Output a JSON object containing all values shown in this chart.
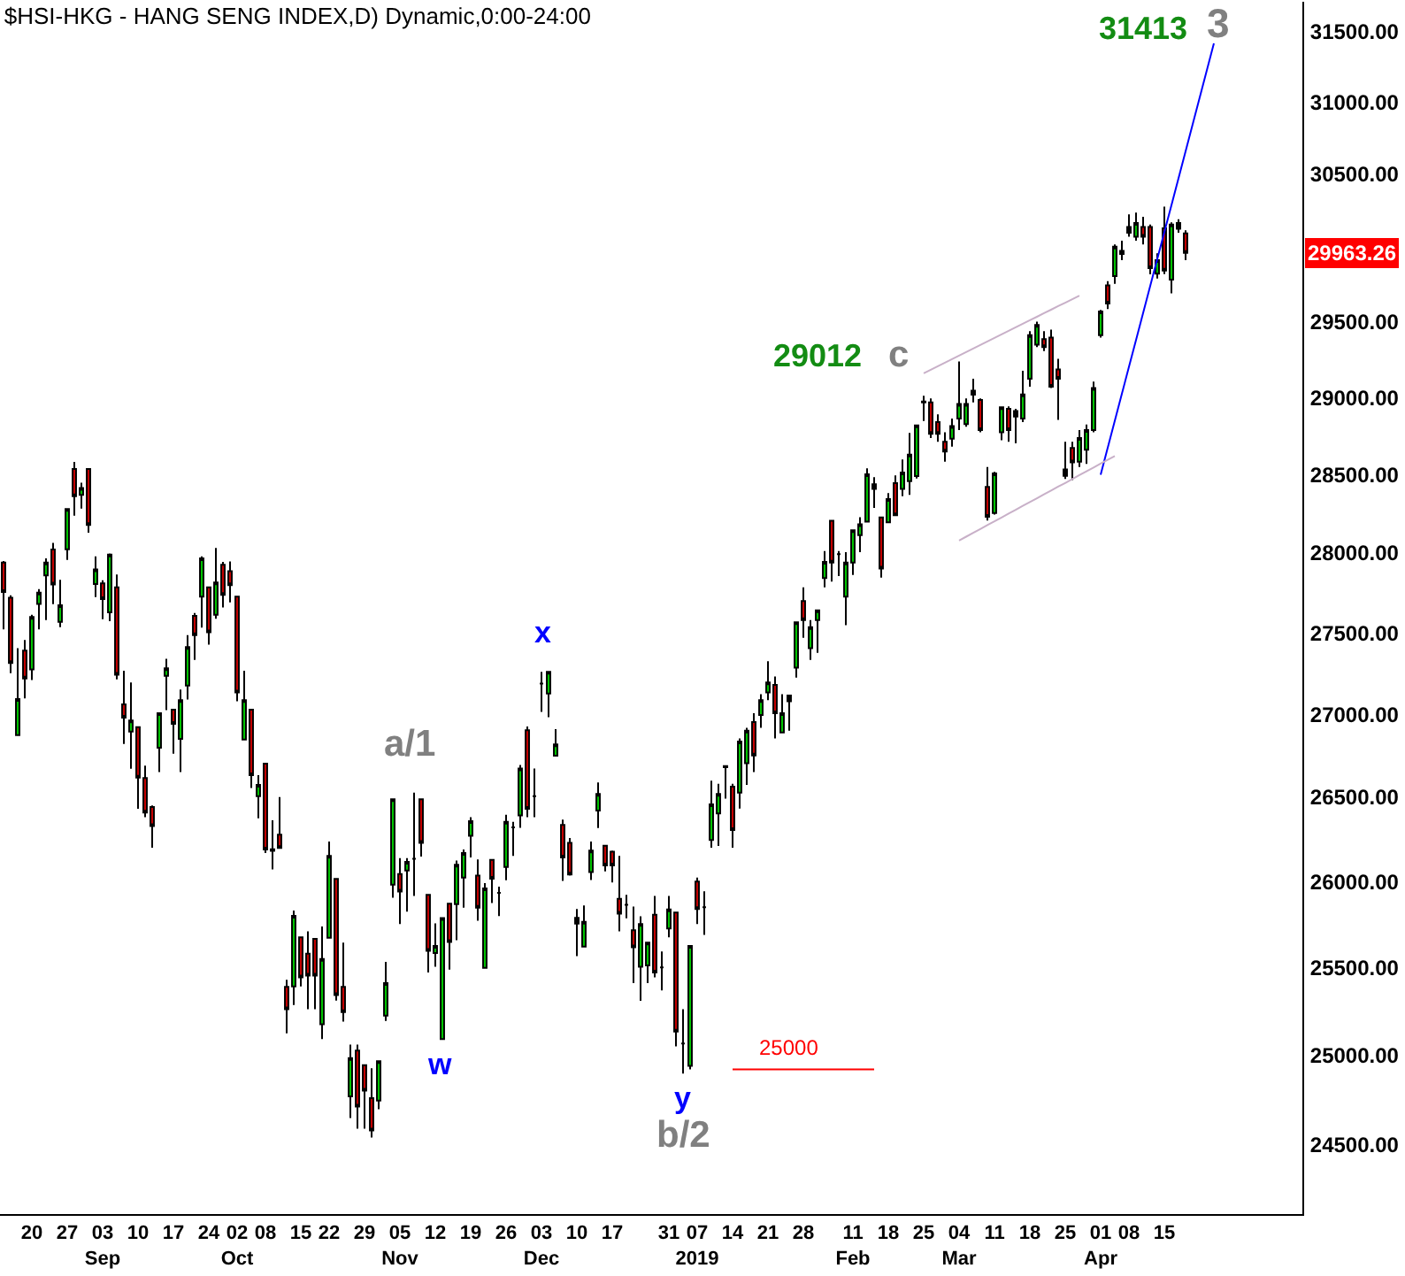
{
  "chart_data": {
    "type": "candlestick",
    "title": "$HSI-HKG - HANG SENG INDEX,D) Dynamic,0:00-24:00",
    "log": true,
    "categories": [
      null,
      null,
      null,
      null,
      "20",
      null,
      null,
      null,
      null,
      "27",
      null,
      null,
      null,
      null,
      "03\nSep",
      null,
      null,
      null,
      null,
      "10",
      null,
      null,
      null,
      null,
      "17",
      null,
      null,
      null,
      null,
      "24",
      null,
      null,
      null,
      "02\nOct",
      null,
      null,
      null,
      "08",
      null,
      null,
      null,
      null,
      "15",
      null,
      null,
      null,
      "22",
      null,
      null,
      null,
      null,
      "29",
      null,
      null,
      null,
      null,
      "05\nNov",
      null,
      null,
      null,
      null,
      "12",
      null,
      null,
      null,
      null,
      "19",
      null,
      null,
      null,
      null,
      "26",
      null,
      null,
      null,
      null,
      "03\nDec",
      null,
      null,
      null,
      null,
      "10",
      null,
      null,
      null,
      null,
      "17",
      null,
      null,
      null,
      null,
      null,
      null,
      null,
      "31",
      null,
      null,
      null,
      "07\n2019",
      null,
      null,
      null,
      null,
      "14",
      null,
      null,
      null,
      null,
      "21",
      null,
      null,
      null,
      null,
      "28",
      null,
      null,
      null,
      null,
      null,
      null,
      "11\nFeb",
      null,
      null,
      null,
      null,
      "18",
      null,
      null,
      null,
      null,
      "25",
      null,
      null,
      null,
      null,
      "04\nMar",
      null,
      null,
      null,
      null,
      "11",
      null,
      null,
      null,
      null,
      "18",
      null,
      null,
      null,
      null,
      "25",
      null,
      null,
      null,
      null,
      "01\nApr",
      null,
      null,
      null,
      "08",
      null,
      null,
      null,
      null,
      "15",
      null,
      null,
      null,
      null,
      null,
      null,
      null,
      null,
      null,
      null,
      null,
      null,
      null,
      null,
      null,
      null,
      null,
      null,
      null
    ],
    "ohlc": [
      [
        27940,
        27950,
        27522,
        27755
      ],
      [
        27720,
        27734,
        27252,
        27314
      ],
      [
        26873,
        27405,
        26873,
        27093
      ],
      [
        27391,
        27457,
        27097,
        27219
      ],
      [
        27274,
        27613,
        27209,
        27599
      ],
      [
        27680,
        27774,
        27522,
        27751
      ],
      [
        27859,
        27967,
        27580,
        27941
      ],
      [
        28023,
        28065,
        27679,
        27802
      ],
      [
        27569,
        27832,
        27536,
        27673
      ],
      [
        28024,
        28280,
        27957,
        28280
      ],
      [
        28537,
        28583,
        28238,
        28362
      ],
      [
        28370,
        28449,
        28283,
        28415
      ],
      [
        28537,
        28537,
        28130,
        28179
      ],
      [
        27806,
        27979,
        27723,
        27897
      ],
      [
        27809,
        27829,
        27585,
        27711
      ],
      [
        27628,
        27998,
        27573,
        27990
      ],
      [
        27785,
        27865,
        27214,
        27242
      ],
      [
        27060,
        27266,
        26820,
        26980
      ],
      [
        26895,
        27194,
        26670,
        26962
      ],
      [
        26921,
        26921,
        26430,
        26617
      ],
      [
        26614,
        26689,
        26380,
        26408
      ],
      [
        26440,
        26450,
        26199,
        26327
      ],
      [
        26797,
        27007,
        26650,
        27007
      ],
      [
        27235,
        27340,
        27025,
        27282
      ],
      [
        27028,
        27028,
        26761,
        26942
      ],
      [
        26851,
        27151,
        26650,
        27086
      ],
      [
        27176,
        27487,
        27090,
        27413
      ],
      [
        27606,
        27624,
        27333,
        27487
      ],
      [
        27727,
        27979,
        27533,
        27967
      ],
      [
        27785,
        27785,
        27427,
        27504
      ],
      [
        27613,
        28032,
        27588,
        27815
      ],
      [
        27926,
        27945,
        27658,
        27737
      ],
      [
        27886,
        27948,
        27690,
        27799
      ],
      [
        27727,
        27727,
        27079,
        27133
      ],
      [
        26846,
        27266,
        26846,
        27086
      ],
      [
        27028,
        27028,
        26555,
        26632
      ],
      [
        26505,
        26632,
        26374,
        26573
      ],
      [
        26700,
        26700,
        26167,
        26188
      ],
      [
        26190,
        26361,
        26071,
        26180
      ],
      [
        26276,
        26500,
        26198,
        26198
      ],
      [
        25389,
        25430,
        25124,
        25261
      ],
      [
        25392,
        25830,
        25285,
        25799
      ],
      [
        25675,
        25675,
        25392,
        25443
      ],
      [
        25580,
        25709,
        25261,
        25454
      ],
      [
        25665,
        25665,
        25261,
        25454
      ],
      [
        25175,
        25737,
        25091,
        25549
      ],
      [
        25672,
        26235,
        25672,
        26151
      ],
      [
        26015,
        26015,
        25311,
        25342
      ],
      [
        25389,
        25644,
        25191,
        25245
      ],
      [
        24769,
        25060,
        24648,
        24984
      ],
      [
        25027,
        25060,
        24589,
        24713
      ],
      [
        24944,
        24944,
        24589,
        24802
      ],
      [
        24759,
        24927,
        24540,
        24579
      ],
      [
        24746,
        24967,
        24697,
        24967
      ],
      [
        25225,
        25532,
        25195,
        25410
      ],
      [
        25981,
        26487,
        25905,
        26487
      ],
      [
        26044,
        26137,
        25751,
        25941
      ],
      [
        26064,
        26137,
        25823,
        26116
      ],
      [
        26133,
        26526,
        25915,
        26133
      ],
      [
        26487,
        26487,
        26147,
        26228
      ],
      [
        25922,
        25922,
        25471,
        25596
      ],
      [
        25583,
        25755,
        25505,
        25624
      ],
      [
        25091,
        25786,
        25091,
        25786
      ],
      [
        25870,
        25870,
        25488,
        25647
      ],
      [
        25867,
        26123,
        25658,
        26099
      ],
      [
        26023,
        26188,
        25847,
        26167
      ],
      [
        26269,
        26380,
        26142,
        26356
      ],
      [
        26034,
        26130,
        25771,
        25847
      ],
      [
        25498,
        25990,
        25498,
        25959
      ],
      [
        26127,
        26127,
        25874,
        26016
      ],
      [
        25934,
        25970,
        25798,
        25934
      ],
      [
        26085,
        26395,
        26007,
        26352
      ],
      [
        26320,
        26352,
        26151,
        26320
      ],
      [
        26391,
        26693,
        26317,
        26672
      ],
      [
        26903,
        26925,
        26380,
        26430
      ],
      [
        26505,
        26672,
        26380,
        26505
      ],
      [
        27187,
        27260,
        27014,
        27187
      ],
      [
        27126,
        27260,
        26982,
        27260
      ],
      [
        26749,
        26910,
        26749,
        26817
      ],
      [
        26334,
        26366,
        26003,
        26142
      ],
      [
        26228,
        26256,
        26034,
        26041
      ],
      [
        25788,
        25839,
        25566,
        25754
      ],
      [
        25621,
        25860,
        25621,
        25764
      ],
      [
        26055,
        26235,
        26009,
        26182
      ],
      [
        26419,
        26587,
        26315,
        26519
      ],
      [
        26211,
        26211,
        26059,
        26095
      ],
      [
        26175,
        26182,
        25994,
        26095
      ],
      [
        25898,
        26151,
        25709,
        25812
      ],
      [
        25863,
        25922,
        25785,
        25863
      ],
      [
        25716,
        25853,
        25410,
        25617
      ],
      [
        25505,
        25796,
        25309,
        25751
      ],
      [
        25512,
        25644,
        25410,
        25644
      ],
      [
        25805,
        25915,
        25444,
        25471
      ],
      [
        25501,
        25593,
        25369,
        25501
      ],
      [
        25726,
        25915,
        25675,
        25836
      ],
      [
        25819,
        25819,
        25050,
        25134
      ],
      [
        25067,
        25261,
        24897,
        25067
      ],
      [
        24940,
        25624,
        24920,
        25624
      ],
      [
        26000,
        26023,
        25751,
        25839
      ],
      [
        25850,
        25943,
        25689,
        25850
      ],
      [
        26245,
        26598,
        26199,
        26456
      ],
      [
        26403,
        26580,
        26210,
        26519
      ],
      [
        26680,
        26686,
        26491,
        26686
      ],
      [
        26562,
        26580,
        26199,
        26304
      ],
      [
        26527,
        26853,
        26432,
        26835
      ],
      [
        26704,
        26918,
        26573,
        26900
      ],
      [
        26953,
        27007,
        26650,
        26750
      ],
      [
        26996,
        27122,
        26918,
        27086
      ],
      [
        27133,
        27325,
        27086,
        27195
      ],
      [
        27180,
        27231,
        26853,
        27007
      ],
      [
        26889,
        27122,
        26889,
        27007
      ],
      [
        27079,
        27115,
        26900,
        27115
      ],
      [
        27285,
        27566,
        27224,
        27566
      ],
      [
        27699,
        27785,
        27470,
        27580
      ],
      [
        27405,
        27580,
        27333,
        27536
      ],
      [
        27580,
        27640,
        27377,
        27640
      ],
      [
        27843,
        28013,
        27785,
        27945
      ],
      [
        28205,
        28205,
        27821,
        27941
      ],
      [
        27994,
        28013,
        27855,
        27994
      ],
      [
        27727,
        28006,
        27548,
        27941
      ],
      [
        27941,
        28145,
        27862,
        28145
      ],
      [
        28114,
        28228,
        28006,
        28182
      ],
      [
        28200,
        28541,
        28200,
        28502
      ],
      [
        28408,
        28484,
        28287,
        28438
      ],
      [
        28227,
        28227,
        27846,
        27902
      ],
      [
        28196,
        28382,
        28196,
        28344
      ],
      [
        28446,
        28495,
        28240,
        28240
      ],
      [
        28408,
        28598,
        28362,
        28514
      ],
      [
        28458,
        28770,
        28370,
        28629
      ],
      [
        28491,
        28819,
        28476,
        28819
      ],
      [
        28975,
        29012,
        28847,
        28969
      ],
      [
        28969,
        28995,
        28737,
        28764
      ],
      [
        28841,
        28891,
        28712,
        28764
      ],
      [
        28712,
        28774,
        28584,
        28650
      ],
      [
        28733,
        28864,
        28681,
        28814
      ],
      [
        28864,
        29238,
        28789,
        28958
      ],
      [
        28827,
        28995,
        28810,
        28958
      ],
      [
        29020,
        29124,
        28969,
        29046
      ],
      [
        28985,
        28995,
        28774,
        28789
      ],
      [
        28422,
        28549,
        28206,
        28230
      ],
      [
        28255,
        28518,
        28245,
        28508
      ],
      [
        28774,
        28937,
        28722,
        28937
      ],
      [
        28927,
        28943,
        28712,
        28789
      ],
      [
        28876,
        28927,
        28702,
        28912
      ],
      [
        28864,
        29176,
        28841,
        29021
      ],
      [
        29124,
        29438,
        29072,
        29412
      ],
      [
        29348,
        29501,
        29333,
        29480
      ],
      [
        29385,
        29438,
        29306,
        29333
      ],
      [
        29395,
        29448,
        29063,
        29072
      ],
      [
        29185,
        29255,
        28855,
        29124
      ],
      [
        28534,
        28712,
        28473,
        28493
      ],
      [
        28672,
        28712,
        28465,
        28579
      ],
      [
        28584,
        28789,
        28549,
        28737
      ],
      [
        28661,
        28825,
        28569,
        28789
      ],
      [
        28789,
        29105,
        28774,
        29063
      ],
      [
        29412,
        29580,
        29396,
        29569
      ],
      [
        29744,
        29772,
        29585,
        29622
      ],
      [
        29807,
        30020,
        29755,
        30005
      ],
      [
        29955,
        30046,
        29914,
        29977
      ],
      [
        30138,
        30225,
        30073,
        30100
      ],
      [
        30073,
        30236,
        30046,
        30166
      ],
      [
        30138,
        30208,
        30020,
        30073
      ],
      [
        30138,
        30155,
        29818,
        29860
      ],
      [
        29823,
        29960,
        29790,
        29914
      ],
      [
        30130,
        30278,
        29820,
        29843
      ],
      [
        29782,
        30170,
        29691,
        30155
      ],
      [
        30166,
        30192,
        30100,
        30127
      ],
      [
        30095,
        30116,
        29914,
        29963.26
      ],
      null,
      null,
      null,
      null,
      null,
      null,
      null,
      null,
      null,
      null,
      null,
      null,
      null,
      null,
      null,
      null
    ],
    "colors": [
      "#cc0000",
      "#cc0000",
      "#00cc00",
      "#cc0000",
      "#00cc00",
      "#00cc00",
      "#00cc00",
      "#cc0000",
      "#00cc00",
      "#00cc00",
      "#cc0000",
      "#00cc00",
      "#cc0000",
      "#00cc00",
      "#cc0000",
      "#00cc00",
      "#cc0000",
      "#cc0000",
      "#00cc00",
      "#cc0000",
      "#cc0000",
      "#cc0000",
      "#00cc00",
      "#00cc00",
      "#cc0000",
      "#00cc00",
      "#00cc00",
      "#cc0000",
      "#00cc00",
      "#cc0000",
      "#00cc00",
      "#cc0000",
      "#cc0000",
      "#cc0000",
      "#00cc00",
      "#cc0000",
      "#00cc00",
      "#cc0000",
      "#000000",
      "#cc0000",
      "#cc0000",
      "#00cc00",
      "#cc0000",
      "#cc0000",
      "#cc0000",
      "#00cc00",
      "#00cc00",
      "#cc0000",
      "#cc0000",
      "#00cc00",
      "#cc0000",
      "#cc0000",
      "#cc0000",
      "#00cc00",
      "#00cc00",
      "#00cc00",
      "#cc0000",
      "#00cc00",
      "#000000",
      "#cc0000",
      "#cc0000",
      "#00cc00",
      "#00cc00",
      "#cc0000",
      "#00cc00",
      "#00cc00",
      "#00cc00",
      "#cc0000",
      "#00cc00",
      "#cc0000",
      "#000000",
      "#00cc00",
      "#000000",
      "#00cc00",
      "#cc0000",
      "#000000",
      "#000000",
      "#00cc00",
      "#00cc00",
      "#cc0000",
      "#cc0000",
      "#000000",
      "#00cc00",
      "#00cc00",
      "#00cc00",
      "#cc0000",
      "#cc0000",
      "#cc0000",
      "#000000",
      "#cc0000",
      "#00cc00",
      "#00cc00",
      "#cc0000",
      "#000000",
      "#00cc00",
      "#cc0000",
      "#000000",
      "#00cc00",
      "#cc0000",
      "#000000",
      "#00cc00",
      "#00cc00",
      "#000000",
      "#cc0000",
      "#00cc00",
      "#00cc00",
      "#cc0000",
      "#00cc00",
      "#00cc00",
      "#cc0000",
      "#00cc00",
      "#000000",
      "#00cc00",
      "#cc0000",
      "#00cc00",
      "#00cc00",
      "#00cc00",
      "#cc0000",
      "#000000",
      "#00cc00",
      "#00cc00",
      "#00cc00",
      "#00cc00",
      "#000000",
      "#cc0000",
      "#00cc00",
      "#cc0000",
      "#00cc00",
      "#00cc00",
      "#00cc00",
      "#000000",
      "#cc0000",
      "#cc0000",
      "#cc0000",
      "#00cc00",
      "#00cc00",
      "#00cc00",
      "#000000",
      "#cc0000",
      "#cc0000",
      "#00cc00",
      "#00cc00",
      "#cc0000",
      "#000000",
      "#00cc00",
      "#00cc00",
      "#00cc00",
      "#cc0000",
      "#cc0000",
      "#cc0000",
      "#000000",
      "#cc0000",
      "#00cc00",
      "#00cc00",
      "#00cc00",
      "#00cc00",
      "#cc0000",
      "#00cc00",
      "#000000",
      "#000000",
      "#00cc00",
      "#cc0000",
      "#cc0000",
      "#00cc00",
      "#cc0000",
      "#00cc00",
      "#000000",
      "#cc0000",
      null,
      null,
      null,
      null,
      null,
      null,
      null,
      null,
      null,
      null,
      null,
      null,
      null,
      null,
      null,
      null
    ],
    "series": [
      {
        "type": "line",
        "color": "#0000ff",
        "values": [
          null,
          null,
          null,
          null,
          null,
          null,
          null,
          null,
          null,
          null,
          null,
          null,
          null,
          null,
          null,
          null,
          null,
          null,
          null,
          null,
          null,
          null,
          null,
          null,
          null,
          null,
          null,
          null,
          null,
          null,
          null,
          null,
          null,
          null,
          null,
          null,
          null,
          null,
          null,
          null,
          null,
          null,
          null,
          null,
          null,
          null,
          null,
          null,
          null,
          null,
          null,
          null,
          null,
          null,
          null,
          null,
          null,
          null,
          null,
          null,
          null,
          null,
          null,
          null,
          null,
          null,
          null,
          null,
          null,
          null,
          null,
          null,
          null,
          null,
          null,
          null,
          null,
          null,
          null,
          null,
          null,
          null,
          null,
          null,
          null,
          null,
          null,
          null,
          null,
          null,
          null,
          null,
          null,
          null,
          null,
          null,
          null,
          null,
          null,
          null,
          null,
          null,
          null,
          null,
          null,
          null,
          null,
          null,
          null,
          null,
          null,
          null,
          null,
          null,
          null,
          null,
          null,
          null,
          null,
          null,
          null,
          null,
          null,
          null,
          null,
          null,
          null,
          null,
          null,
          null,
          null,
          null,
          null,
          null,
          null,
          null,
          null,
          null,
          null,
          null,
          null,
          null,
          null,
          null,
          null,
          null,
          null,
          null,
          null,
          null,
          null,
          null,
          null,
          null,
          null,
          28500,
          28674,
          28849,
          29025,
          29202,
          29380,
          29559,
          29740,
          29921,
          30104,
          30287,
          30472,
          30658,
          30845,
          31033,
          31223,
          31413,
          null,
          null,
          null,
          null,
          null,
          null,
          null,
          null,
          null,
          null,
          null,
          null
        ]
      },
      {
        "type": "line",
        "color": "#c8b0c8",
        "values": [
          null,
          null,
          null,
          null,
          null,
          null,
          null,
          null,
          null,
          null,
          null,
          null,
          null,
          null,
          null,
          null,
          null,
          null,
          null,
          null,
          null,
          null,
          null,
          null,
          null,
          null,
          null,
          null,
          null,
          null,
          null,
          null,
          null,
          null,
          null,
          null,
          null,
          null,
          null,
          null,
          null,
          null,
          null,
          null,
          null,
          null,
          null,
          null,
          null,
          null,
          null,
          null,
          null,
          null,
          null,
          null,
          null,
          null,
          null,
          null,
          null,
          null,
          null,
          null,
          null,
          null,
          null,
          null,
          null,
          null,
          null,
          null,
          null,
          null,
          null,
          null,
          null,
          null,
          null,
          null,
          null,
          null,
          null,
          null,
          null,
          null,
          null,
          null,
          null,
          null,
          null,
          null,
          null,
          null,
          null,
          null,
          null,
          null,
          null,
          null,
          null,
          null,
          null,
          null,
          null,
          null,
          null,
          null,
          null,
          null,
          null,
          null,
          null,
          null,
          null,
          null,
          null,
          null,
          null,
          null,
          null,
          null,
          null,
          null,
          null,
          null,
          null,
          null,
          null,
          null,
          29160,
          29183,
          29206,
          29230,
          29253,
          29276,
          29300,
          29323,
          29346,
          29370,
          29393,
          29417,
          29440,
          29464,
          29487,
          29511,
          29534,
          29558,
          29581,
          29605,
          29628,
          29652,
          29675,
          null,
          null,
          null,
          null,
          null,
          null,
          null,
          null,
          null,
          null,
          null,
          null,
          null,
          null,
          null,
          null,
          null,
          null,
          null,
          null,
          null,
          null,
          null,
          null,
          null,
          null,
          null,
          null,
          null,
          null,
          null
        ]
      },
      {
        "type": "line",
        "color": "#c8b0c8",
        "values": [
          null,
          null,
          null,
          null,
          null,
          null,
          null,
          null,
          null,
          null,
          null,
          null,
          null,
          null,
          null,
          null,
          null,
          null,
          null,
          null,
          null,
          null,
          null,
          null,
          null,
          null,
          null,
          null,
          null,
          null,
          null,
          null,
          null,
          null,
          null,
          null,
          null,
          null,
          null,
          null,
          null,
          null,
          null,
          null,
          null,
          null,
          null,
          null,
          null,
          null,
          null,
          null,
          null,
          null,
          null,
          null,
          null,
          null,
          null,
          null,
          null,
          null,
          null,
          null,
          null,
          null,
          null,
          null,
          null,
          null,
          null,
          null,
          null,
          null,
          null,
          null,
          null,
          null,
          null,
          null,
          null,
          null,
          null,
          null,
          null,
          null,
          null,
          null,
          null,
          null,
          null,
          null,
          null,
          null,
          null,
          null,
          null,
          null,
          null,
          null,
          null,
          null,
          null,
          null,
          null,
          null,
          null,
          null,
          null,
          null,
          null,
          null,
          null,
          null,
          null,
          null,
          null,
          null,
          null,
          null,
          null,
          null,
          null,
          null,
          null,
          null,
          null,
          null,
          null,
          null,
          null,
          null,
          null,
          null,
          null,
          28080,
          28104,
          28129,
          28153,
          28178,
          28202,
          28226,
          28251,
          28275,
          28300,
          28324,
          28349,
          28374,
          28398,
          28423,
          28447,
          28472,
          28497,
          28522,
          28546,
          28571,
          28596,
          28620,
          null,
          null,
          null,
          null,
          null,
          null,
          null,
          null,
          null,
          null,
          null,
          null,
          null,
          null,
          null,
          null,
          null,
          null,
          null,
          null,
          null,
          null,
          null,
          null,
          null,
          null
        ]
      },
      {
        "type": "line",
        "color": "#ff0000",
        "values": [
          null,
          null,
          null,
          null,
          null,
          null,
          null,
          null,
          null,
          null,
          null,
          null,
          null,
          null,
          null,
          null,
          null,
          null,
          null,
          null,
          null,
          null,
          null,
          null,
          null,
          null,
          null,
          null,
          null,
          null,
          null,
          null,
          null,
          null,
          null,
          null,
          null,
          null,
          null,
          null,
          null,
          null,
          null,
          null,
          null,
          null,
          null,
          null,
          null,
          null,
          null,
          null,
          null,
          null,
          null,
          null,
          null,
          null,
          null,
          null,
          null,
          null,
          null,
          null,
          null,
          null,
          null,
          null,
          null,
          null,
          null,
          null,
          null,
          null,
          null,
          null,
          null,
          null,
          null,
          null,
          null,
          null,
          null,
          null,
          null,
          null,
          null,
          null,
          null,
          null,
          null,
          null,
          null,
          null,
          null,
          null,
          null,
          null,
          null,
          null,
          null,
          null,
          null,
          24920,
          24920,
          24920,
          24920,
          24920,
          24920,
          24920,
          24920,
          24920,
          24920,
          24920,
          24920,
          24920,
          24920,
          24920,
          24920,
          24920,
          24920,
          24920,
          24920,
          24920,
          null,
          null,
          null,
          null,
          null,
          null,
          null,
          null,
          null,
          null,
          null,
          null,
          null,
          null,
          null,
          null,
          null,
          null,
          null,
          null,
          null,
          null,
          null,
          null,
          null,
          null,
          null,
          null,
          null,
          null,
          null,
          null,
          null,
          null,
          null,
          null,
          null,
          null,
          null,
          null,
          null,
          null,
          null,
          null,
          null,
          null,
          null,
          null,
          null,
          null,
          null,
          null,
          null,
          null,
          null,
          null,
          null,
          null,
          null,
          null
        ]
      }
    ],
    "annotations": [
      "31413",
      "3",
      "29012",
      "c",
      "x",
      "a/1",
      "w",
      "y",
      "b/2",
      "25000",
      "29963.26"
    ],
    "ylim": [
      24120,
      31710
    ],
    "yticks": [
      {
        "value": 24500,
        "label": "24500.00"
      },
      {
        "value": 25000,
        "label": "25000.00"
      },
      {
        "value": 25500,
        "label": "25500.00"
      },
      {
        "value": 26000,
        "label": "26000.00"
      },
      {
        "value": 26500,
        "label": "26500.00"
      },
      {
        "value": 27000,
        "label": "27000.00"
      },
      {
        "value": 27500,
        "label": "27500.00"
      },
      {
        "value": 28000,
        "label": "28000.00"
      },
      {
        "value": 28500,
        "label": "28500.00"
      },
      {
        "value": 29000,
        "label": "29000.00"
      },
      {
        "value": 29500,
        "label": "29500.00"
      },
      {
        "value": 30500,
        "label": "30500.00"
      },
      {
        "value": 31000,
        "label": "31000.00"
      },
      {
        "value": 31500,
        "label": "31500.00"
      }
    ]
  }
}
